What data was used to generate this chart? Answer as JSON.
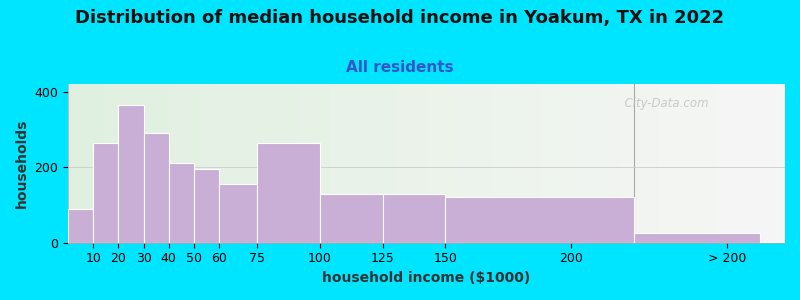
{
  "title": "Distribution of median household income in Yoakum, TX in 2022",
  "subtitle": "All residents",
  "xlabel": "household income ($1000)",
  "ylabel": "households",
  "bar_color": "#c9aed6",
  "bar_edgecolor": "#ffffff",
  "background_outer": "#00e5ff",
  "background_inner_left": "#e0f0e0",
  "background_inner_right": "#f5f5f5",
  "bar_left_edges": [
    0,
    10,
    20,
    30,
    40,
    50,
    60,
    75,
    100,
    125,
    150,
    225
  ],
  "bar_widths": [
    10,
    10,
    10,
    10,
    10,
    10,
    15,
    25,
    25,
    25,
    75,
    50
  ],
  "values": [
    90,
    265,
    365,
    290,
    210,
    195,
    155,
    265,
    130,
    130,
    120,
    25
  ],
  "xtick_positions": [
    10,
    20,
    30,
    40,
    50,
    60,
    75,
    100,
    125,
    150,
    200
  ],
  "xtick_labels": [
    "10",
    "20",
    "30",
    "40",
    "50",
    "60",
    "75",
    "100",
    "125",
    "150",
    "200"
  ],
  "xtick_extra_pos": 262,
  "xtick_extra_label": "> 200",
  "xlim": [
    0,
    285
  ],
  "ylim": [
    0,
    420
  ],
  "yticks": [
    0,
    200,
    400
  ],
  "separator_x": 225,
  "title_fontsize": 13,
  "subtitle_fontsize": 11,
  "axis_label_fontsize": 10,
  "tick_fontsize": 9,
  "watermark_text": "  City-Data.com"
}
